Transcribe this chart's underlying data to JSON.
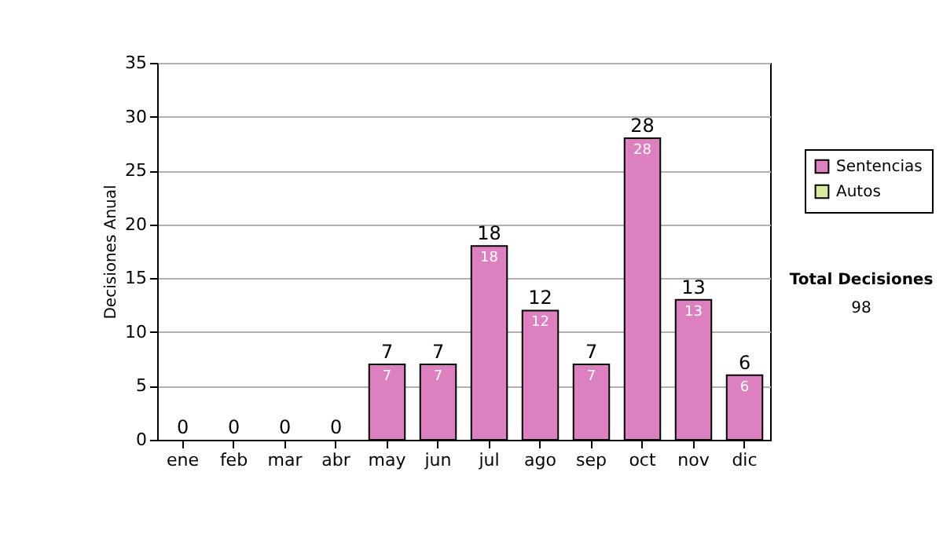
{
  "chart_data": {
    "type": "bar",
    "stacked": true,
    "ylabel": "Decisiones Anual",
    "categories": [
      "ene",
      "feb",
      "mar",
      "abr",
      "may",
      "jun",
      "jul",
      "ago",
      "sep",
      "oct",
      "nov",
      "dic"
    ],
    "series": [
      {
        "name": "Sentencias",
        "color": "#dd80bf",
        "values": [
          0,
          0,
          0,
          0,
          7,
          7,
          18,
          12,
          7,
          28,
          13,
          6
        ],
        "value_labels": [
          null,
          null,
          null,
          null,
          "7",
          "7",
          "18",
          "12",
          "7",
          "28",
          "13",
          "6"
        ]
      },
      {
        "name": "Autos",
        "color": "#d9eaa3",
        "values": [
          0,
          0,
          0,
          0,
          0,
          0,
          0,
          0,
          0,
          0,
          0,
          0
        ]
      }
    ],
    "totals": [
      "0",
      "0",
      "0",
      "0",
      "7",
      "7",
      "18",
      "12",
      "7",
      "28",
      "13",
      "6"
    ],
    "ylim": [
      0,
      35
    ],
    "yticks": [
      0,
      5,
      10,
      15,
      20,
      25,
      30,
      35
    ],
    "grid": "y",
    "legend": "right",
    "annotations": [
      "Total Decisiones",
      "98"
    ]
  }
}
